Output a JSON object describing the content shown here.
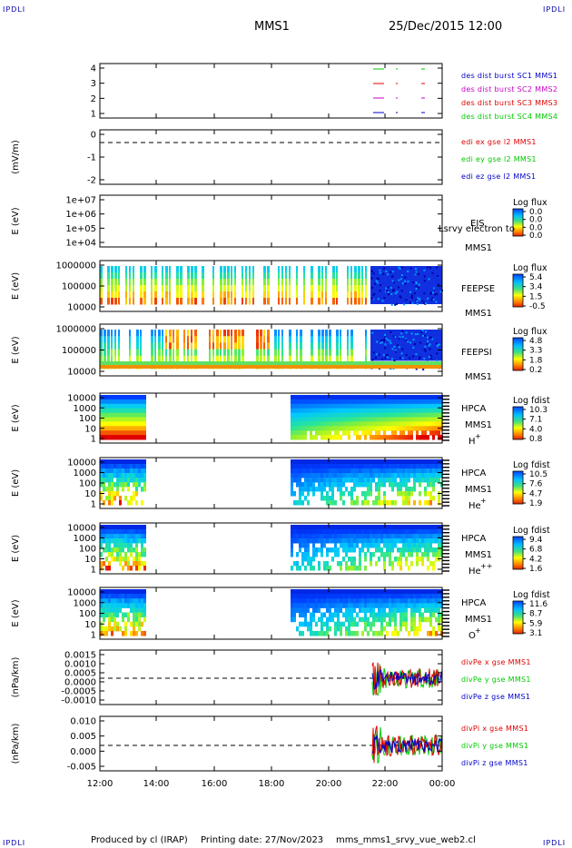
{
  "header": {
    "spacecraft": "MMS1",
    "datetime": "25/Dec/2015 12:00"
  },
  "corners": {
    "tl": "IPDLI",
    "tr": "IPDLI",
    "bl": "IPDLI",
    "br": "IPDLI"
  },
  "footer": {
    "produced_by": "Produced by cl (IRAP)",
    "printing_date": "Printing date: 27/Nov/2023",
    "filename": "mms_mms1_srvy_vue_web2.cl"
  },
  "chart_data": {
    "type": "multi-panel time series",
    "x_ticks": [
      "12:00",
      "14:00",
      "16:00",
      "18:00",
      "20:00",
      "22:00",
      "00:00"
    ],
    "panels": [
      {
        "id": "burst",
        "ylabel": "",
        "yticks": [
          "4",
          "3",
          "2",
          "1"
        ],
        "legend": [
          {
            "text": "des dist burst SC1 MMS1",
            "color": "#0000c8"
          },
          {
            "text": "des dist burst SC2 MMS2",
            "color": "#c800c8"
          },
          {
            "text": "des dist burst SC3 MMS3",
            "color": "#e00000"
          },
          {
            "text": "des dist burst SC4 MMS4",
            "color": "#00c800"
          }
        ]
      },
      {
        "id": "edi",
        "ylabel": "(mV/m)",
        "yticks": [
          "0",
          "-1",
          "-2"
        ],
        "legend": [
          {
            "text": "edi ex gse l2 MMS1",
            "color": "#e00000"
          },
          {
            "text": "edi ey gse l2 MMS1",
            "color": "#00c800"
          },
          {
            "text": "edi ez gse l2 MMS1",
            "color": "#0000c8"
          }
        ]
      },
      {
        "id": "eis",
        "ylabel": "E (eV)",
        "yticks": [
          "1e+07",
          "1e+06",
          "1e+05",
          "1e+04"
        ],
        "label": [
          "EIS",
          "MMS1"
        ],
        "overlay_text": "Lsrvy electron to",
        "cbar_title": "Log flux",
        "cbar_ticks": [
          "0.0",
          "0.0",
          "0.0",
          "0.0"
        ]
      },
      {
        "id": "feepse",
        "ylabel": "E (eV)",
        "yticks": [
          "1000000",
          "100000",
          "10000"
        ],
        "label": [
          "FEEPSE",
          "MMS1"
        ],
        "cbar_title": "Log flux",
        "cbar_ticks": [
          "5.4",
          "3.4",
          "1.5",
          "-0.5"
        ]
      },
      {
        "id": "feepsi",
        "ylabel": "E (eV)",
        "yticks": [
          "1000000",
          "100000",
          "10000"
        ],
        "label": [
          "FEEPSI",
          "MMS1"
        ],
        "cbar_title": "Log flux",
        "cbar_ticks": [
          "4.8",
          "3.3",
          "1.8",
          "0.2"
        ]
      },
      {
        "id": "hpca_h",
        "ylabel": "E (eV)",
        "yticks": [
          "10000",
          "1000",
          "100",
          "10",
          "1"
        ],
        "label": [
          "HPCA",
          "MMS1"
        ],
        "species": "H",
        "species_sup": "+",
        "cbar_title": "Log fdist",
        "cbar_ticks": [
          "10.3",
          "7.1",
          "4.0",
          "0.8"
        ]
      },
      {
        "id": "hpca_he1",
        "ylabel": "E (eV)",
        "yticks": [
          "10000",
          "1000",
          "100",
          "10",
          "1"
        ],
        "label": [
          "HPCA",
          "MMS1"
        ],
        "species": "He",
        "species_sup": "+",
        "cbar_title": "Log fdist",
        "cbar_ticks": [
          "10.5",
          "7.6",
          "4.7",
          "1.9"
        ]
      },
      {
        "id": "hpca_he2",
        "ylabel": "E (eV)",
        "yticks": [
          "10000",
          "1000",
          "100",
          "10",
          "1"
        ],
        "label": [
          "HPCA",
          "MMS1"
        ],
        "species": "He",
        "species_sup": "++",
        "cbar_title": "Log fdist",
        "cbar_ticks": [
          "9.4",
          "6.8",
          "4.2",
          "1.6"
        ]
      },
      {
        "id": "hpca_o",
        "ylabel": "E (eV)",
        "yticks": [
          "10000",
          "1000",
          "100",
          "10",
          "1"
        ],
        "label": [
          "HPCA",
          "MMS1"
        ],
        "species": "O",
        "species_sup": "+",
        "cbar_title": "Log fdist",
        "cbar_ticks": [
          "11.6",
          "8.7",
          "5.9",
          "3.1"
        ]
      },
      {
        "id": "divpe",
        "ylabel": "(nPa/km)",
        "yticks": [
          "0.0015",
          "0.0010",
          "0.0005",
          "0.0000",
          "-0.0005",
          "-0.0010"
        ],
        "legend": [
          {
            "text": "divPe x gse MMS1",
            "color": "#e00000"
          },
          {
            "text": "divPe y gse MMS1",
            "color": "#00c800"
          },
          {
            "text": "divPe z gse MMS1",
            "color": "#0000c8"
          }
        ]
      },
      {
        "id": "divpi",
        "ylabel": "(nPa/km)",
        "yticks": [
          "0.010",
          "0.005",
          "0.000",
          "-0.005"
        ],
        "legend": [
          {
            "text": "divPi x gse MMS1",
            "color": "#e00000"
          },
          {
            "text": "divPi y gse MMS1",
            "color": "#00c800"
          },
          {
            "text": "divPi z gse MMS1",
            "color": "#0000c8"
          }
        ]
      }
    ]
  }
}
